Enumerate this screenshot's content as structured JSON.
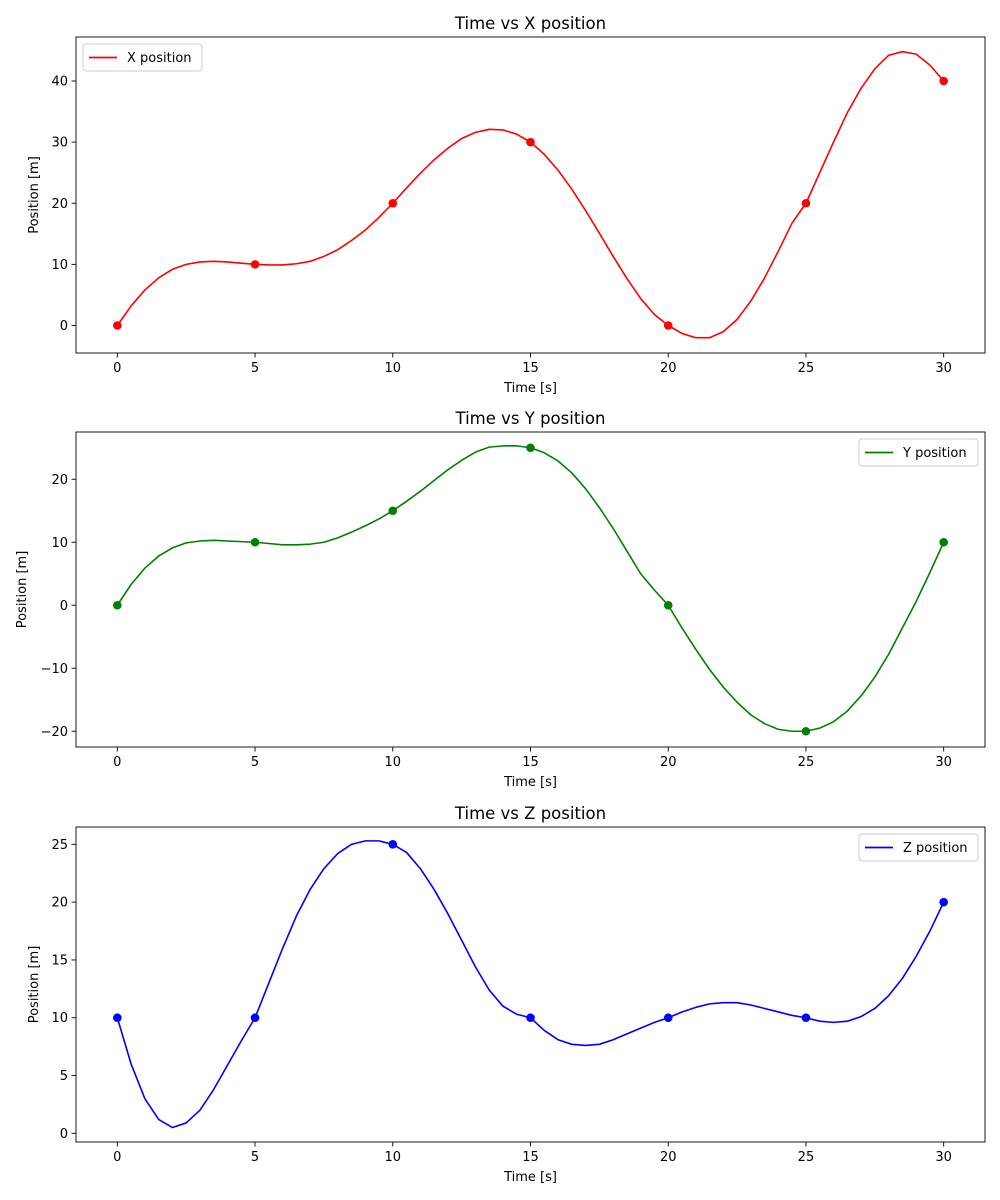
{
  "chart_data": [
    {
      "type": "line",
      "title": "Time vs X position",
      "xlabel": "Time [s]",
      "ylabel": "Position [m]",
      "xlim": [
        -1.5,
        31.5
      ],
      "ylim": [
        -4.5,
        47.2
      ],
      "xticks": [
        0,
        5,
        10,
        15,
        20,
        25,
        30
      ],
      "yticks": [
        0,
        10,
        20,
        30,
        40
      ],
      "grid": false,
      "legend_position": "upper left",
      "series": [
        {
          "name": "X position",
          "color": "#ff0000",
          "x": [
            0,
            5,
            10,
            15,
            20,
            25,
            30
          ],
          "y": [
            0,
            10,
            20,
            30,
            0,
            20,
            40
          ],
          "curve": {
            "x": [
              0,
              0.5,
              1,
              1.5,
              2,
              2.5,
              3,
              3.5,
              4,
              4.5,
              5,
              5.5,
              6,
              6.5,
              7,
              7.5,
              8,
              8.5,
              9,
              9.5,
              10,
              10.5,
              11,
              11.5,
              12,
              12.5,
              13,
              13.5,
              14,
              14.5,
              15,
              15.5,
              16,
              16.5,
              17,
              17.5,
              18,
              18.5,
              19,
              19.5,
              20,
              20.5,
              21,
              21.5,
              22,
              22.5,
              23,
              23.5,
              24,
              24.5,
              25,
              25.5,
              26,
              26.5,
              27,
              27.5,
              28,
              28.5,
              29,
              29.5,
              30
            ],
            "y": [
              0,
              3.2,
              5.8,
              7.8,
              9.2,
              10.0,
              10.4,
              10.5,
              10.4,
              10.2,
              10.0,
              9.9,
              9.9,
              10.1,
              10.5,
              11.3,
              12.4,
              13.9,
              15.6,
              17.7,
              20.0,
              22.5,
              24.9,
              27.1,
              29.0,
              30.6,
              31.6,
              32.1,
              32.0,
              31.3,
              30.0,
              28.0,
              25.4,
              22.3,
              18.8,
              15.1,
              11.3,
              7.7,
              4.4,
              1.8,
              0,
              -1.3,
              -2.0,
              -2.0,
              -1.0,
              1.0,
              4.0,
              7.8,
              12.2,
              16.8,
              20.0,
              25.0,
              30.0,
              34.8,
              38.8,
              42.0,
              44.2,
              44.8,
              44.4,
              42.6,
              40.0
            ]
          }
        }
      ]
    },
    {
      "type": "line",
      "title": "Time vs Y position",
      "xlabel": "Time [s]",
      "ylabel": "Position [m]",
      "xlim": [
        -1.5,
        31.5
      ],
      "ylim": [
        -22.5,
        27.5
      ],
      "xticks": [
        0,
        5,
        10,
        15,
        20,
        25,
        30
      ],
      "yticks": [
        -20,
        -10,
        0,
        10,
        20
      ],
      "grid": false,
      "legend_position": "upper right",
      "series": [
        {
          "name": "Y position",
          "color": "#008000",
          "x": [
            0,
            5,
            10,
            15,
            20,
            25,
            30
          ],
          "y": [
            0,
            10,
            15,
            25,
            0,
            -20,
            10
          ],
          "curve": {
            "x": [
              0,
              0.5,
              1,
              1.5,
              2,
              2.5,
              3,
              3.5,
              4,
              4.5,
              5,
              5.5,
              6,
              6.5,
              7,
              7.5,
              8,
              8.5,
              9,
              9.5,
              10,
              10.5,
              11,
              11.5,
              12,
              12.5,
              13,
              13.5,
              14,
              14.5,
              15,
              15.5,
              16,
              16.5,
              17,
              17.5,
              18,
              18.5,
              19,
              19.5,
              20,
              20.5,
              21,
              21.5,
              22,
              22.5,
              23,
              23.5,
              24,
              24.5,
              25,
              25.5,
              26,
              26.5,
              27,
              27.5,
              28,
              28.5,
              29,
              29.5,
              30
            ],
            "y": [
              0,
              3.3,
              5.9,
              7.8,
              9.1,
              9.9,
              10.2,
              10.3,
              10.2,
              10.1,
              10.0,
              9.8,
              9.6,
              9.6,
              9.7,
              10.0,
              10.7,
              11.6,
              12.6,
              13.7,
              15.0,
              16.5,
              18.1,
              19.8,
              21.5,
              23.0,
              24.3,
              25.1,
              25.3,
              25.3,
              25.0,
              24.2,
              22.9,
              21.0,
              18.5,
              15.5,
              12.2,
              8.6,
              5.0,
              2.4,
              0,
              -3.6,
              -7.0,
              -10.2,
              -13.0,
              -15.4,
              -17.4,
              -18.8,
              -19.7,
              -20.0,
              -20.0,
              -19.5,
              -18.5,
              -16.8,
              -14.4,
              -11.4,
              -7.8,
              -3.6,
              0.6,
              5.2,
              10.0
            ]
          }
        }
      ]
    },
    {
      "type": "line",
      "title": "Time vs Z position",
      "xlabel": "Time [s]",
      "ylabel": "Position [m]",
      "xlim": [
        -1.5,
        31.5
      ],
      "ylim": [
        -0.75,
        26.5
      ],
      "xticks": [
        0,
        5,
        10,
        15,
        20,
        25,
        30
      ],
      "yticks": [
        0,
        5,
        10,
        15,
        20,
        25
      ],
      "grid": false,
      "legend_position": "upper right",
      "series": [
        {
          "name": "Z position",
          "color": "#0000ff",
          "x": [
            0,
            5,
            10,
            15,
            20,
            25,
            30
          ],
          "y": [
            10,
            10,
            25,
            10,
            10,
            10,
            20
          ],
          "curve": {
            "x": [
              0,
              0.5,
              1,
              1.5,
              2,
              2.5,
              3,
              3.5,
              4,
              4.5,
              5,
              5.5,
              6,
              6.5,
              7,
              7.5,
              8,
              8.5,
              9,
              9.5,
              10,
              10.5,
              11,
              11.5,
              12,
              12.5,
              13,
              13.5,
              14,
              14.5,
              15,
              15.5,
              16,
              16.5,
              17,
              17.5,
              18,
              18.5,
              19,
              19.5,
              20,
              20.5,
              21,
              21.5,
              22,
              22.5,
              23,
              23.5,
              24,
              24.5,
              25,
              25.5,
              26,
              26.5,
              27,
              27.5,
              28,
              28.5,
              29,
              29.5,
              30
            ],
            "y": [
              10,
              6.0,
              3.0,
              1.2,
              0.5,
              0.9,
              2.0,
              3.8,
              5.9,
              8.0,
              10.0,
              13.0,
              16.0,
              18.8,
              21.1,
              22.9,
              24.2,
              25.0,
              25.3,
              25.3,
              25.0,
              24.3,
              22.9,
              21.1,
              19.0,
              16.7,
              14.4,
              12.4,
              11.0,
              10.3,
              10.0,
              8.9,
              8.1,
              7.7,
              7.6,
              7.7,
              8.1,
              8.6,
              9.1,
              9.6,
              10.0,
              10.5,
              10.9,
              11.2,
              11.3,
              11.3,
              11.1,
              10.8,
              10.5,
              10.2,
              10.0,
              9.7,
              9.6,
              9.7,
              10.1,
              10.8,
              11.9,
              13.4,
              15.3,
              17.5,
              20.0
            ]
          }
        }
      ]
    }
  ]
}
